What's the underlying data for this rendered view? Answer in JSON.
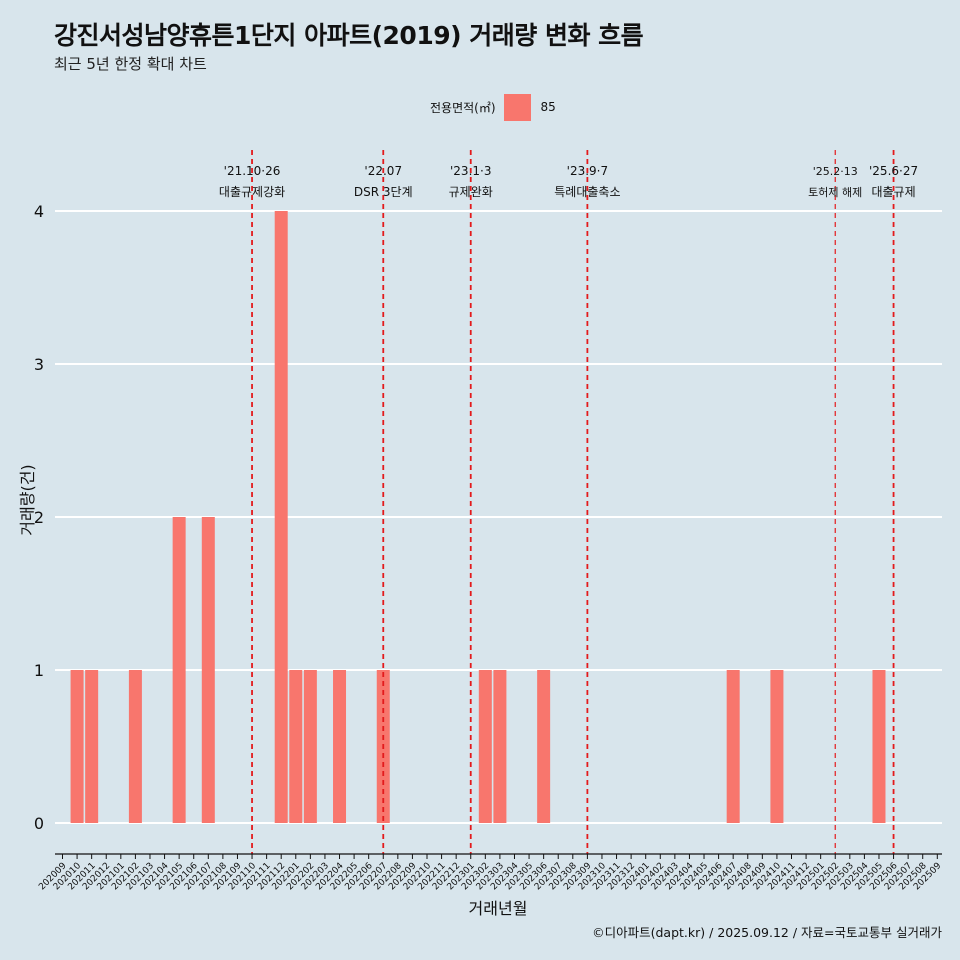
{
  "header": {
    "title": "강진서성남양휴튼1단지 아파트(2019) 거래량 변화 흐름",
    "subtitle": "최근 5년 한정 확대 차트"
  },
  "legend": {
    "title": "전용면적(㎡)",
    "items": [
      {
        "label": "85",
        "color": "#f8766d"
      }
    ]
  },
  "caption": "©디아파트(dapt.kr) / 2025.09.12 / 자료=국토교통부 실거래가",
  "chart_data": {
    "type": "bar",
    "xlabel": "거래년월",
    "ylabel": "거래량(건)",
    "ylim": [
      0,
      4
    ],
    "yticks": [
      0,
      1,
      2,
      3,
      4
    ],
    "grid": true,
    "legend_position": "top",
    "categories": [
      "202009",
      "202010",
      "202011",
      "202012",
      "202101",
      "202102",
      "202103",
      "202104",
      "202105",
      "202106",
      "202107",
      "202108",
      "202109",
      "202110",
      "202111",
      "202112",
      "202201",
      "202202",
      "202203",
      "202204",
      "202205",
      "202206",
      "202207",
      "202208",
      "202209",
      "202210",
      "202211",
      "202212",
      "202301",
      "202302",
      "202303",
      "202304",
      "202305",
      "202306",
      "202307",
      "202308",
      "202309",
      "202310",
      "202311",
      "202312",
      "202401",
      "202402",
      "202403",
      "202404",
      "202405",
      "202406",
      "202407",
      "202408",
      "202409",
      "202410",
      "202411",
      "202412",
      "202501",
      "202502",
      "202503",
      "202504",
      "202505",
      "202506",
      "202507",
      "202508",
      "202509"
    ],
    "series": [
      {
        "name": "85",
        "color": "#f8766d",
        "values": [
          0,
          1,
          1,
          0,
          0,
          1,
          0,
          0,
          2,
          0,
          2,
          0,
          0,
          0,
          0,
          4,
          1,
          1,
          0,
          1,
          0,
          0,
          1,
          0,
          0,
          0,
          0,
          0,
          0,
          1,
          1,
          0,
          0,
          1,
          0,
          0,
          0,
          0,
          0,
          0,
          0,
          0,
          0,
          0,
          0,
          0,
          1,
          0,
          0,
          1,
          0,
          0,
          0,
          0,
          0,
          0,
          1,
          0,
          0,
          0,
          0
        ]
      }
    ],
    "annotations": [
      {
        "month": "202110",
        "date": "'21.10·26",
        "label": "대출규제강화"
      },
      {
        "month": "202207",
        "date": "'22.07",
        "label": "DSR 3단계"
      },
      {
        "month": "202301",
        "date": "'23.1·3",
        "label": "규제완화"
      },
      {
        "month": "202309",
        "date": "'23.9·7",
        "label": "특례대출축소"
      },
      {
        "month": "202502",
        "date": "'25.2·13",
        "label": "토허제 해제"
      },
      {
        "month": "202506",
        "date": "'25.6·27",
        "label": "대출규제"
      }
    ],
    "annotation_line_color": "#e31a1c"
  }
}
